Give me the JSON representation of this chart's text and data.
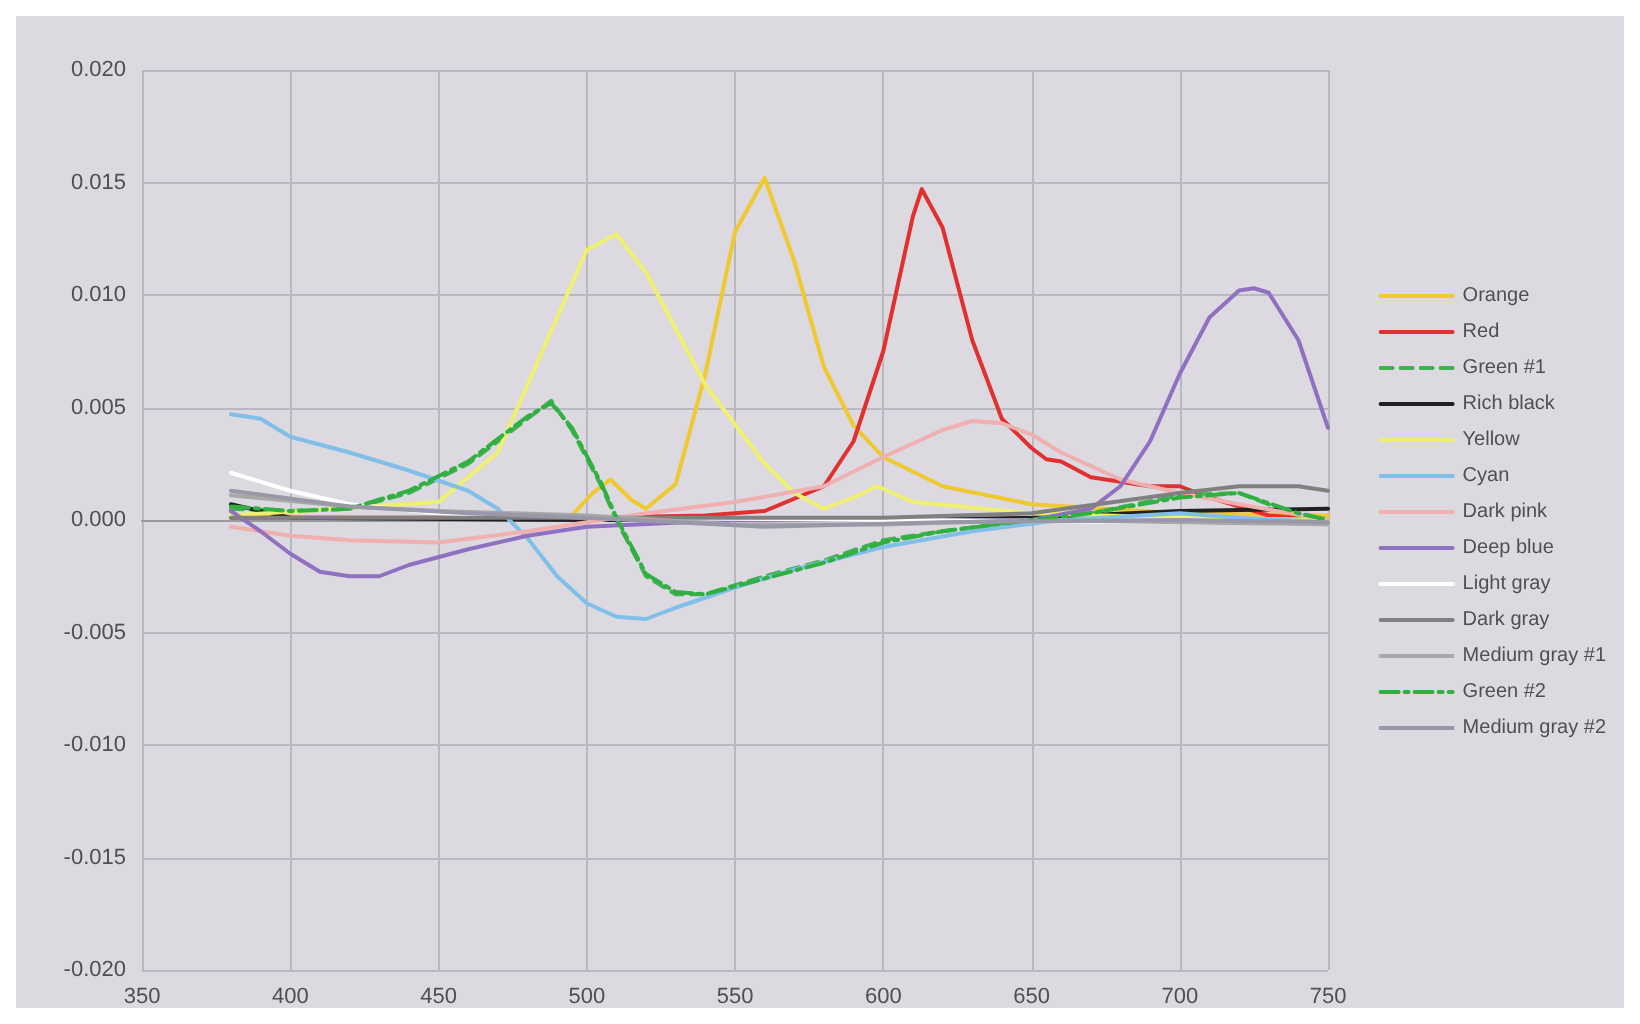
{
  "chart_data": {
    "type": "line",
    "xlim": [
      350,
      750
    ],
    "xticks": [
      350,
      400,
      450,
      500,
      550,
      600,
      650,
      700,
      750
    ],
    "ylim": [
      -0.02,
      0.02
    ],
    "yticks": [
      {
        "value": -0.02,
        "label": "-0.020"
      },
      {
        "value": -0.015,
        "label": "-0.015"
      },
      {
        "value": -0.01,
        "label": "-0.010"
      },
      {
        "value": -0.005,
        "label": "-0.005"
      },
      {
        "value": 0,
        "label": "0.000"
      },
      {
        "value": 0.005,
        "label": "0.005"
      },
      {
        "value": 0.01,
        "label": "0.010"
      },
      {
        "value": 0.015,
        "label": "0.015"
      },
      {
        "value": 0.02,
        "label": "0.020"
      }
    ],
    "grid": true,
    "legend": "right",
    "marker": "none",
    "series": [
      {
        "name": "Orange",
        "color": "#f0c830",
        "line_style": "solid",
        "x": [
          380,
          420,
          460,
          495,
          502,
          508,
          515,
          520,
          530,
          540,
          550,
          560,
          570,
          580,
          590,
          600,
          620,
          650,
          700,
          750
        ],
        "values": [
          0.0002,
          0.0001,
          0.0001,
          0.0002,
          0.0012,
          0.0018,
          0.0009,
          0.0005,
          0.0016,
          0.0065,
          0.0128,
          0.0152,
          0.0115,
          0.0068,
          0.0042,
          0.0028,
          0.0015,
          0.0007,
          0.0003,
          0.0002
        ]
      },
      {
        "name": "Red",
        "color": "#e03030",
        "line_style": "solid",
        "x": [
          380,
          450,
          500,
          540,
          560,
          580,
          590,
          600,
          610,
          613,
          620,
          630,
          640,
          650,
          655,
          660,
          670,
          690,
          700,
          710,
          730,
          750
        ],
        "values": [
          0.0001,
          0.0001,
          0.0001,
          0.0002,
          0.0004,
          0.0015,
          0.0035,
          0.0075,
          0.0135,
          0.0147,
          0.013,
          0.008,
          0.0045,
          0.0032,
          0.0027,
          0.0026,
          0.0019,
          0.0015,
          0.0015,
          0.001,
          0.0002,
          0
        ]
      },
      {
        "name": "Green #1",
        "color": "#40b050",
        "line_style": "dashed",
        "x": [
          380,
          400,
          420,
          440,
          460,
          480,
          488,
          495,
          505,
          510,
          520,
          530,
          540,
          560,
          580,
          600,
          620,
          650,
          670,
          700,
          720,
          740,
          750
        ],
        "values": [
          0.0005,
          0.0004,
          0.0005,
          0.0012,
          0.0025,
          0.0045,
          0.0053,
          0.004,
          0.0015,
          0,
          -0.0025,
          -0.0033,
          -0.0033,
          -0.0025,
          -0.0018,
          -0.0009,
          -0.0005,
          0,
          0.0003,
          0.0011,
          0.0012,
          0.0002,
          0
        ]
      },
      {
        "name": "Rich black",
        "color": "#202020",
        "line_style": "solid",
        "x": [
          380,
          400,
          500,
          600,
          650,
          700,
          750
        ],
        "values": [
          0.0007,
          0.0001,
          0,
          0,
          0.0001,
          0.0004,
          0.0005
        ]
      },
      {
        "name": "Yellow",
        "color": "#f0f070",
        "line_style": "solid",
        "x": [
          380,
          450,
          470,
          490,
          500,
          510,
          520,
          540,
          560,
          570,
          580,
          590,
          598,
          610,
          650,
          700,
          750
        ],
        "values": [
          0.0002,
          0.0008,
          0.003,
          0.009,
          0.012,
          0.0127,
          0.011,
          0.006,
          0.0025,
          0.0012,
          0.0005,
          0.001,
          0.0015,
          0.0008,
          0.0003,
          0.0001,
          0
        ]
      },
      {
        "name": "Cyan",
        "color": "#80c0e8",
        "line_style": "solid",
        "x": [
          380,
          390,
          400,
          420,
          440,
          460,
          470,
          480,
          490,
          500,
          510,
          520,
          530,
          550,
          570,
          600,
          630,
          660,
          700,
          720,
          750
        ],
        "values": [
          0.0047,
          0.0045,
          0.0037,
          0.003,
          0.0022,
          0.0013,
          0.0005,
          -0.0008,
          -0.0025,
          -0.0037,
          -0.0043,
          -0.0044,
          -0.0039,
          -0.003,
          -0.0022,
          -0.0012,
          -0.0005,
          0,
          0.0003,
          0.0001,
          -0.0001
        ]
      },
      {
        "name": "Dark pink",
        "color": "#f0b0b0",
        "line_style": "solid",
        "x": [
          380,
          400,
          420,
          450,
          480,
          520,
          550,
          580,
          600,
          620,
          630,
          640,
          650,
          660,
          680,
          700,
          720,
          750
        ],
        "values": [
          -0.0003,
          -0.0007,
          -0.0009,
          -0.001,
          -0.0005,
          0.0003,
          0.0008,
          0.0015,
          0.0028,
          0.004,
          0.0044,
          0.0043,
          0.0038,
          0.003,
          0.0018,
          0.0012,
          0.0007,
          0
        ]
      },
      {
        "name": "Deep blue",
        "color": "#9070c0",
        "line_style": "solid",
        "x": [
          380,
          390,
          400,
          410,
          420,
          430,
          440,
          460,
          480,
          500,
          550,
          650,
          670,
          680,
          690,
          700,
          710,
          720,
          725,
          730,
          740,
          750
        ],
        "values": [
          0.0004,
          -0.0005,
          -0.0015,
          -0.0023,
          -0.0025,
          -0.0025,
          -0.002,
          -0.0013,
          -0.0007,
          -0.0003,
          0,
          0,
          0.0005,
          0.0015,
          0.0035,
          0.0065,
          0.009,
          0.0102,
          0.0103,
          0.0101,
          0.008,
          0.0041
        ]
      },
      {
        "name": "Light gray",
        "color": "#ffffff",
        "line_style": "solid",
        "x": [
          380,
          400,
          420,
          450,
          500,
          600,
          700,
          750
        ],
        "values": [
          0.0021,
          0.0013,
          0.0007,
          0.0003,
          0.0001,
          0,
          -0.0001,
          -0.0002
        ]
      },
      {
        "name": "Dark gray",
        "color": "#808080",
        "line_style": "solid",
        "x": [
          380,
          500,
          600,
          650,
          700,
          720,
          740,
          750
        ],
        "values": [
          0.0001,
          0.0001,
          0.0001,
          0.0003,
          0.0012,
          0.0015,
          0.0015,
          0.0013
        ]
      },
      {
        "name": "Medium gray #1",
        "color": "#a8a8a8",
        "line_style": "solid",
        "x": [
          380,
          420,
          450,
          500,
          550,
          600,
          650,
          700,
          750
        ],
        "values": [
          0.0011,
          0.0006,
          0.0004,
          0.0002,
          -0.0002,
          -0.0002,
          0,
          -0.0001,
          -0.0002
        ]
      },
      {
        "name": "Green #2",
        "color": "#30b040",
        "line_style": "dashdot",
        "x": [
          380,
          400,
          420,
          440,
          460,
          480,
          488,
          495,
          505,
          510,
          520,
          530,
          540,
          560,
          580,
          600,
          620,
          650,
          670,
          700,
          720,
          740,
          750
        ],
        "values": [
          0.0006,
          0.0004,
          0.0005,
          0.0013,
          0.0026,
          0.0046,
          0.0052,
          0.0041,
          0.0016,
          0.0001,
          -0.0024,
          -0.0032,
          -0.0033,
          -0.0026,
          -0.0019,
          -0.001,
          -0.0005,
          0,
          0.0003,
          0.001,
          0.0012,
          0.0003,
          0
        ]
      },
      {
        "name": "Medium gray #2",
        "color": "#9898a8",
        "line_style": "solid",
        "x": [
          380,
          420,
          460,
          500,
          560,
          620,
          700,
          750
        ],
        "values": [
          0.0013,
          0.0006,
          0.0003,
          0.0001,
          -0.0003,
          -0.0001,
          0,
          -0.0001
        ]
      }
    ]
  }
}
